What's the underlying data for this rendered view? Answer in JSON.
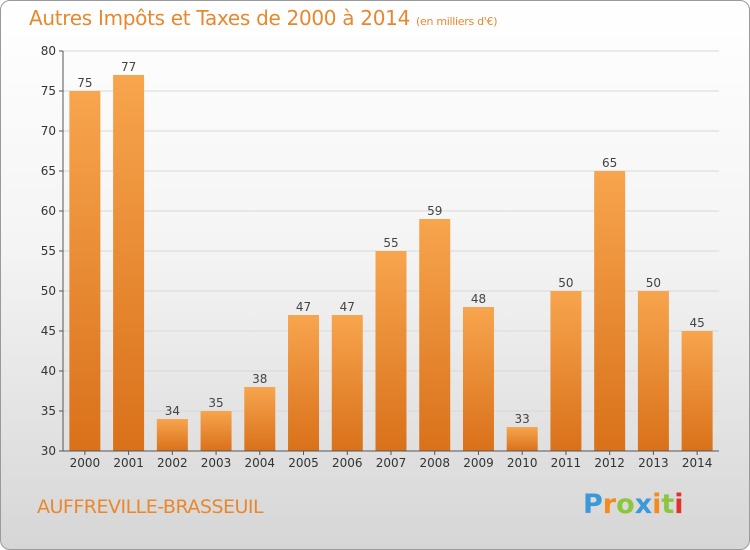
{
  "header": {
    "title": "Autres Impôts et Taxes de 2000 à 2014",
    "unit": "(en milliers d'€)"
  },
  "footer": {
    "commune": "AUFFREVILLE-BRASSEUIL"
  },
  "logo": {
    "letters": [
      "P",
      "r",
      "o",
      "x",
      "i",
      "t",
      "i"
    ],
    "colors": [
      "#3a9ad9",
      "#f28c1e",
      "#8cc63f",
      "#3a9ad9",
      "#f28c1e",
      "#8cc63f",
      "#e2332b"
    ]
  },
  "colors": {
    "bar_light": "#f7a54e",
    "bar_dark": "#d9711a",
    "accent": "#e8882e",
    "grid": "#d8d8d8"
  },
  "chart_data": {
    "type": "bar",
    "title": "Autres Impôts et Taxes de 2000 à 2014",
    "subtitle": "(en milliers d'€)",
    "xlabel": "",
    "ylabel": "",
    "categories": [
      "2000",
      "2001",
      "2002",
      "2003",
      "2004",
      "2005",
      "2006",
      "2007",
      "2008",
      "2009",
      "2010",
      "2011",
      "2012",
      "2013",
      "2014"
    ],
    "values": [
      75,
      77,
      34,
      35,
      38,
      47,
      47,
      55,
      59,
      48,
      33,
      50,
      65,
      50,
      45
    ],
    "ylim": [
      30,
      80
    ],
    "yticks": [
      30,
      35,
      40,
      45,
      50,
      55,
      60,
      65,
      70,
      75,
      80
    ],
    "grid": true,
    "data_labels": true
  }
}
